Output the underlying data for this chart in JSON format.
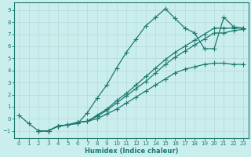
{
  "xlabel": "Humidex (Indice chaleur)",
  "bg_color": "#caeeed",
  "line_color": "#1a7a6e",
  "marker": "+",
  "markersize": 4,
  "linewidth": 0.9,
  "xlim": [
    -0.5,
    23.5
  ],
  "ylim": [
    -1.6,
    9.6
  ],
  "xticks": [
    0,
    1,
    2,
    3,
    4,
    5,
    6,
    7,
    8,
    9,
    10,
    11,
    12,
    13,
    14,
    15,
    16,
    17,
    18,
    19,
    20,
    21,
    22,
    23
  ],
  "yticks": [
    -1,
    0,
    1,
    2,
    3,
    4,
    5,
    6,
    7,
    8,
    9
  ],
  "grid_color": "#b8d8d6",
  "series": [
    {
      "x": [
        0,
        1,
        2,
        3,
        4,
        5,
        6,
        7,
        8,
        9,
        10,
        11,
        12,
        13,
        14,
        15,
        16,
        17,
        18,
        19,
        20,
        21,
        22,
        23
      ],
      "y": [
        0.3,
        -0.4,
        -1.0,
        -1.0,
        -0.6,
        -0.5,
        -0.4,
        0.5,
        1.7,
        2.8,
        4.2,
        5.5,
        6.6,
        7.7,
        8.4,
        9.1,
        8.3,
        7.5,
        7.1,
        5.8,
        5.8,
        8.4,
        7.6,
        7.5
      ]
    },
    {
      "x": [
        2,
        3,
        4,
        5,
        6,
        7,
        8,
        9,
        10,
        11,
        12,
        13,
        14,
        15,
        16,
        17,
        18,
        19,
        20,
        21,
        22,
        23
      ],
      "y": [
        -1.0,
        -1.0,
        -0.6,
        -0.5,
        -0.3,
        -0.2,
        0.3,
        0.8,
        1.5,
        2.1,
        2.8,
        3.5,
        4.2,
        4.9,
        5.5,
        6.0,
        6.5,
        7.0,
        7.5,
        7.5,
        7.5,
        7.5
      ]
    },
    {
      "x": [
        2,
        3,
        4,
        5,
        6,
        7,
        8,
        9,
        10,
        11,
        12,
        13,
        14,
        15,
        16,
        17,
        18,
        19,
        20,
        21,
        22,
        23
      ],
      "y": [
        -1.0,
        -1.0,
        -0.6,
        -0.5,
        -0.3,
        -0.2,
        0.2,
        0.7,
        1.3,
        1.9,
        2.5,
        3.1,
        3.8,
        4.5,
        5.1,
        5.6,
        6.1,
        6.6,
        7.1,
        7.1,
        7.3,
        7.4
      ]
    },
    {
      "x": [
        2,
        3,
        4,
        5,
        6,
        7,
        8,
        9,
        10,
        11,
        12,
        13,
        14,
        15,
        16,
        17,
        18,
        19,
        20,
        21,
        22,
        23
      ],
      "y": [
        -1.0,
        -1.0,
        -0.6,
        -0.5,
        -0.3,
        -0.2,
        0.0,
        0.4,
        0.8,
        1.3,
        1.8,
        2.3,
        2.8,
        3.3,
        3.8,
        4.1,
        4.3,
        4.5,
        4.6,
        4.6,
        4.5,
        4.5
      ]
    }
  ]
}
